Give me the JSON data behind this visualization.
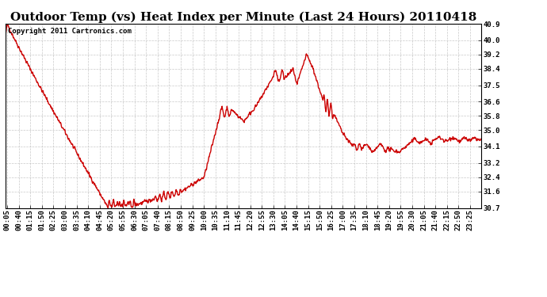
{
  "title": "Outdoor Temp (vs) Heat Index per Minute (Last 24 Hours) 20110418",
  "copyright_text": "Copyright 2011 Cartronics.com",
  "line_color": "#cc0000",
  "background_color": "#ffffff",
  "grid_color": "#bbbbbb",
  "ylim": [
    30.7,
    40.9
  ],
  "yticks": [
    30.7,
    31.6,
    32.4,
    33.2,
    34.1,
    35.0,
    35.8,
    36.6,
    37.5,
    38.4,
    39.2,
    40.0,
    40.9
  ],
  "title_fontsize": 11,
  "tick_fontsize": 6.5,
  "copyright_fontsize": 6.5,
  "line_width": 1.0
}
